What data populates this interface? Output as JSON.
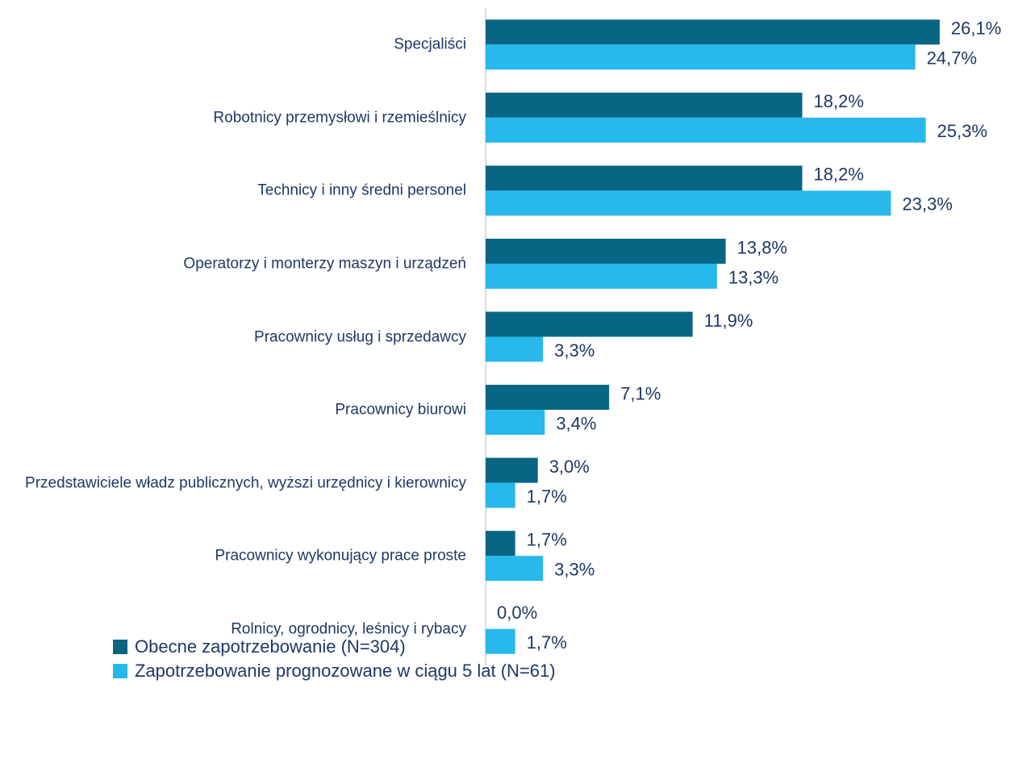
{
  "chart_data": {
    "type": "bar",
    "orientation": "horizontal",
    "categories": [
      "Specjaliści",
      "Robotnicy przemysłowi i rzemieślnicy",
      "Technicy i inny średni personel",
      "Operatorzy i monterzy maszyn i urządzeń",
      "Pracownicy usług i sprzedawcy",
      "Pracownicy biurowi",
      "Przedstawiciele władz publicznych, wyższi urzędnicy i kierownicy",
      "Pracownicy wykonujący prace proste",
      "Rolnicy, ogrodnicy, leśnicy i rybacy"
    ],
    "series": [
      {
        "name": "Obecne zapotrzebowanie (N=304)",
        "color": "#086584",
        "values": [
          26.1,
          18.2,
          18.2,
          13.8,
          11.9,
          7.1,
          3.0,
          1.7,
          0.0
        ],
        "value_labels": [
          "26,1%",
          "18,2%",
          "18,2%",
          "13,8%",
          "11,9%",
          "7,1%",
          "3,0%",
          "1,7%",
          "0,0%"
        ]
      },
      {
        "name": "Zapotrzebowanie prognozowane w ciągu 5 lat (N=61)",
        "color": "#27b8ec",
        "values": [
          24.7,
          25.3,
          23.3,
          13.3,
          3.3,
          3.4,
          1.7,
          3.3,
          1.7
        ],
        "value_labels": [
          "24,7%",
          "25,3%",
          "23,3%",
          "13,3%",
          "3,3%",
          "3,4%",
          "1,7%",
          "3,3%",
          "1,7%"
        ]
      }
    ],
    "xlim": [
      0,
      30
    ],
    "legend": "bottom-left"
  }
}
